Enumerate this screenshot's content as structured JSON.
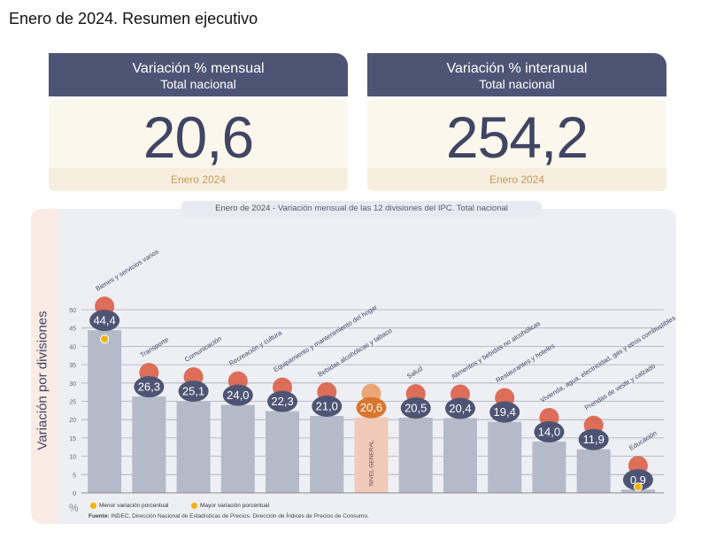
{
  "page_title": "Enero de 2024. Resumen ejecutivo",
  "kpi_monthly": {
    "title": "Variación % mensual",
    "subtitle": "Total nacional",
    "value": "20,6",
    "period": "Enero 2024"
  },
  "kpi_yearly": {
    "title": "Variación % interanual",
    "subtitle": "Total nacional",
    "value": "254,2",
    "period": "Enero 2024"
  },
  "panel": {
    "subtitle_prefix": "Enero de 2024 - ",
    "subtitle_rest": "Variación mensual de las 12 divisiones del IPC. Total nacional",
    "pct_symbol": "%",
    "legend_min": "Menor variación porcentual",
    "legend_max": "Mayor variación porcentual",
    "source_label": "Fuente:",
    "source_text": "INDEC, Dirección Nacional de Estadísticas de Precios. Dirección de Índices de Precios de Consumo."
  },
  "chart_data": {
    "type": "bar",
    "ylabel": "Variación por divisiones",
    "ylim": [
      0,
      50
    ],
    "yticks": [
      0,
      5,
      10,
      15,
      20,
      25,
      30,
      35,
      40,
      45,
      50
    ],
    "grid": true,
    "categories": [
      "Bienes y servicios varios",
      "Transporte",
      "Comunicación",
      "Recreación y cultura",
      "Equipamiento y mantenimiento del hogar",
      "Bebidas alcohólicas y tabaco",
      "NIVEL GENERAL",
      "Salud",
      "Alimentos y bebidas no alcohólicas",
      "Restaurantes y hoteles",
      "Vivienda, agua, electricidad, gas y otros combustibles",
      "Prendas de vestir y calzado",
      "Educación"
    ],
    "values": [
      44.4,
      26.3,
      25.1,
      24.0,
      22.3,
      21.0,
      20.6,
      20.5,
      20.4,
      19.4,
      14.0,
      11.9,
      0.9
    ],
    "value_labels": [
      "44,4",
      "26,3",
      "25,1",
      "24,0",
      "22,3",
      "21,0",
      "20,6",
      "20,5",
      "20,4",
      "19,4",
      "14,0",
      "11,9",
      "0,9"
    ],
    "highlight_index": 6,
    "max_index": 0,
    "min_index": 12,
    "colors": {
      "bar": "#b4bac8",
      "highlight_bar": "#f1c9b8",
      "badge": "#4e5574",
      "highlight_badge": "#d9772f",
      "marker": "#f0b400",
      "grid": "#a9abb5"
    },
    "icons": [
      "scissors-comb-icon",
      "car-icon",
      "phone-icon",
      "umbrella-icon",
      "washer-icon",
      "drinks-icon",
      "basket-icon",
      "medical-cross-icon",
      "chicken-icon",
      "dish-icon",
      "lightbulb-icon",
      "tshirt-icon",
      "notebook-icon"
    ]
  }
}
